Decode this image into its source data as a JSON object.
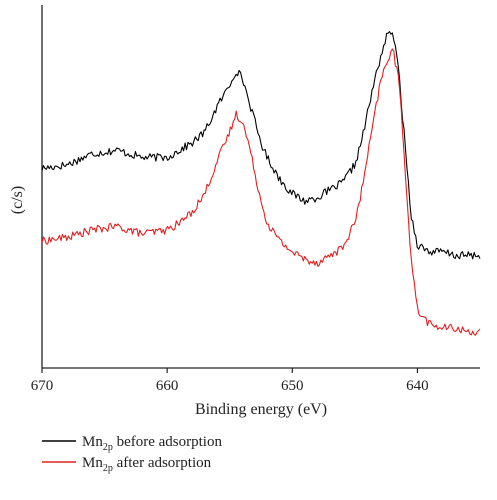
{
  "chart_data": {
    "type": "line",
    "title": "",
    "xlabel": "Binding energy (eV)",
    "ylabel": "(c/s)",
    "xlim": [
      670,
      635
    ],
    "ylim": [
      0,
      100
    ],
    "x_ticks": [
      670,
      660,
      650,
      640
    ],
    "x_tick_labels": [
      "670",
      "660",
      "650",
      "640"
    ],
    "y_ticks_shown": false,
    "grid": false,
    "legend": "bottom-left",
    "series": [
      {
        "name": "Mn2p before adsorption",
        "name_parts": {
          "base": "Mn",
          "sub": "2p",
          "rest": " before adsorption"
        },
        "color": "#000000",
        "x": [
          670,
          668,
          666,
          664,
          662,
          660,
          659,
          658,
          657,
          656,
          655,
          654.5,
          654,
          653.5,
          653,
          652.5,
          652,
          651,
          650,
          649,
          648,
          647,
          646,
          645,
          644.5,
          644,
          643.5,
          643,
          642.5,
          642,
          641.5,
          641,
          640.5,
          640,
          639,
          638,
          637,
          636,
          635
        ],
        "y": [
          55,
          56,
          59,
          60,
          58,
          58,
          60,
          62,
          65,
          72,
          78,
          82,
          80,
          74,
          68,
          62,
          58,
          52,
          48,
          46,
          47,
          49,
          51,
          56,
          62,
          70,
          78,
          85,
          91,
          93,
          82,
          62,
          42,
          34,
          32,
          32,
          31,
          31,
          31
        ]
      },
      {
        "name": "Mn2p after adsorption",
        "name_parts": {
          "base": "Mn",
          "sub": "2p",
          "rest": " after adsorption"
        },
        "color": "#e02020",
        "x": [
          670,
          668,
          666,
          664,
          662,
          660,
          659,
          658,
          657,
          656,
          655,
          654.5,
          654,
          653.5,
          653,
          652.5,
          652,
          651,
          650,
          649,
          648,
          647,
          646,
          645,
          644.5,
          644,
          643.5,
          643,
          642.5,
          642,
          641.5,
          641,
          640.5,
          640,
          639,
          638,
          637,
          636,
          635
        ],
        "y": [
          35,
          36,
          38,
          39,
          37,
          38,
          40,
          43,
          48,
          57,
          65,
          70,
          68,
          62,
          54,
          46,
          40,
          35,
          32,
          30,
          29,
          31,
          33,
          40,
          48,
          58,
          68,
          78,
          84,
          88,
          80,
          56,
          30,
          16,
          12,
          11,
          11,
          10,
          10
        ]
      }
    ]
  }
}
